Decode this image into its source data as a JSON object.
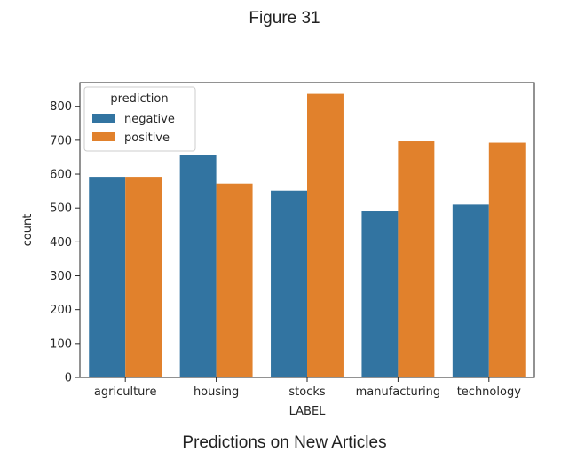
{
  "figure": {
    "title": "Figure 31",
    "caption": "Predictions on New Articles"
  },
  "chart_data": {
    "type": "bar",
    "categories": [
      "agriculture",
      "housing",
      "stocks",
      "manufacturing",
      "technology"
    ],
    "series": [
      {
        "name": "negative",
        "color": "#3274a1",
        "values": [
          592,
          656,
          551,
          490,
          510
        ]
      },
      {
        "name": "positive",
        "color": "#e1812c",
        "values": [
          592,
          572,
          837,
          697,
          693
        ]
      }
    ],
    "xlabel": "LABEL",
    "ylabel": "count",
    "ylim": [
      0,
      870
    ],
    "yticks": [
      0,
      100,
      200,
      300,
      400,
      500,
      600,
      700,
      800
    ],
    "legend": {
      "title": "prediction",
      "placement": "top-left"
    },
    "grid": false
  }
}
